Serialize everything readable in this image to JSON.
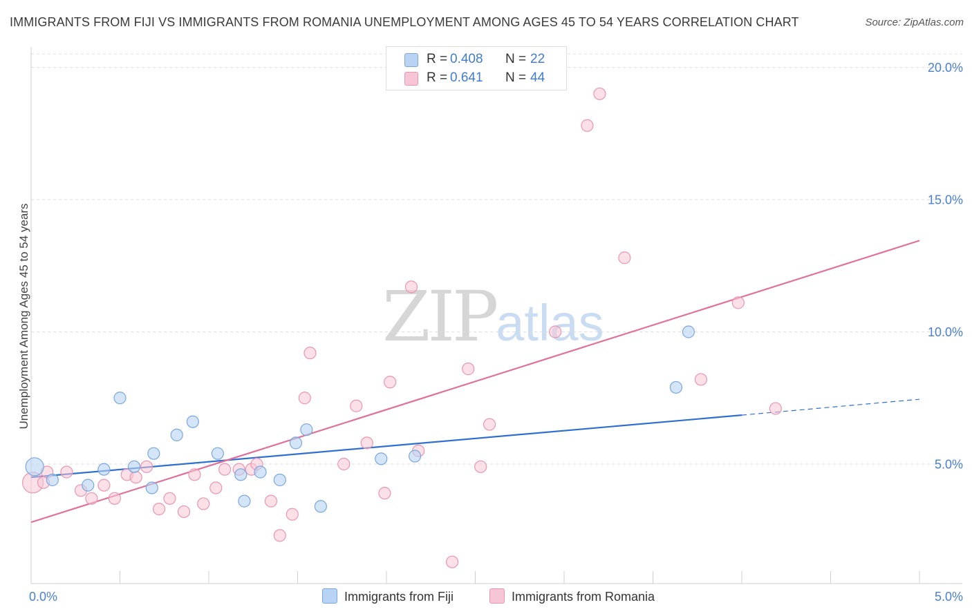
{
  "header": {
    "title": "IMMIGRANTS FROM FIJI VS IMMIGRANTS FROM ROMANIA UNEMPLOYMENT AMONG AGES 45 TO 54 YEARS CORRELATION CHART",
    "source": "Source: ZipAtlas.com"
  },
  "watermark": {
    "zip": "ZIP",
    "atlas": "atlas"
  },
  "legend": {
    "fiji": {
      "r_label": "R =",
      "r_value": "0.408",
      "n_label": "N =",
      "n_value": "22"
    },
    "romania": {
      "r_label": "R =",
      "r_value": "0.641",
      "n_label": "N =",
      "n_value": "44"
    }
  },
  "bottom_legend": {
    "fiji": "Immigrants from Fiji",
    "romania": "Immigrants from Romania"
  },
  "colors": {
    "fiji_fill": "#b8d3f3",
    "fiji_stroke": "#7aa6dc",
    "fiji_line": "#2f6fcf",
    "romania_fill": "#f7c6d6",
    "romania_stroke": "#e895b2",
    "romania_line": "#e0709a",
    "tick_label": "#4a7fd0",
    "grid": "#dedede"
  },
  "chart_data": {
    "type": "scatter",
    "title": "IMMIGRANTS FROM FIJI VS IMMIGRANTS FROM ROMANIA UNEMPLOYMENT AMONG AGES 45 TO 54 YEARS CORRELATION CHART",
    "xlabel": "",
    "ylabel": "Unemployment Among Ages 45 to 54 years",
    "xlim": [
      0,
      5
    ],
    "ylim": [
      0.5,
      20.5
    ],
    "x_ticks": [
      {
        "value": 0,
        "label": "0.0%"
      },
      {
        "value": 5,
        "label": "5.0%"
      }
    ],
    "y_ticks": [
      {
        "value": 5,
        "label": "5.0%"
      },
      {
        "value": 10,
        "label": "10.0%"
      },
      {
        "value": 15,
        "label": "15.0%"
      },
      {
        "value": 20,
        "label": "20.0%"
      }
    ],
    "grid": true,
    "legend_position": "top-center",
    "series": [
      {
        "name": "Immigrants from Fiji",
        "points": [
          [
            0.02,
            4.9
          ],
          [
            0.12,
            4.4
          ],
          [
            0.32,
            4.2
          ],
          [
            0.41,
            4.8
          ],
          [
            0.5,
            7.5
          ],
          [
            0.58,
            4.9
          ],
          [
            0.68,
            4.1
          ],
          [
            0.69,
            5.4
          ],
          [
            0.82,
            6.1
          ],
          [
            0.91,
            6.6
          ],
          [
            1.05,
            5.4
          ],
          [
            1.18,
            4.6
          ],
          [
            1.2,
            3.6
          ],
          [
            1.29,
            4.7
          ],
          [
            1.4,
            4.4
          ],
          [
            1.49,
            5.8
          ],
          [
            1.55,
            6.3
          ],
          [
            1.63,
            3.4
          ],
          [
            1.97,
            5.2
          ],
          [
            2.16,
            5.3
          ],
          [
            3.63,
            7.9
          ],
          [
            3.7,
            10.0
          ]
        ],
        "trend": {
          "x0": 0,
          "y0": 4.5,
          "x1": 4.0,
          "y1": 6.85,
          "dashed_to_x": 5.0,
          "dashed_to_y": 7.45
        }
      },
      {
        "name": "Immigrants from Romania",
        "points": [
          [
            0.01,
            4.3
          ],
          [
            0.07,
            4.3
          ],
          [
            0.09,
            4.7
          ],
          [
            0.2,
            4.7
          ],
          [
            0.28,
            4.0
          ],
          [
            0.34,
            3.7
          ],
          [
            0.41,
            4.2
          ],
          [
            0.47,
            3.7
          ],
          [
            0.54,
            4.6
          ],
          [
            0.59,
            4.5
          ],
          [
            0.65,
            4.9
          ],
          [
            0.72,
            3.3
          ],
          [
            0.78,
            3.7
          ],
          [
            0.86,
            3.2
          ],
          [
            0.92,
            4.6
          ],
          [
            0.97,
            3.5
          ],
          [
            1.04,
            4.1
          ],
          [
            1.09,
            4.8
          ],
          [
            1.17,
            4.8
          ],
          [
            1.24,
            4.8
          ],
          [
            1.27,
            5.0
          ],
          [
            1.35,
            3.6
          ],
          [
            1.4,
            2.3
          ],
          [
            1.47,
            3.1
          ],
          [
            1.54,
            7.5
          ],
          [
            1.57,
            9.2
          ],
          [
            1.76,
            5.0
          ],
          [
            1.83,
            7.2
          ],
          [
            1.89,
            5.8
          ],
          [
            1.99,
            3.9
          ],
          [
            2.02,
            8.1
          ],
          [
            2.14,
            11.7
          ],
          [
            2.18,
            5.5
          ],
          [
            2.37,
            1.3
          ],
          [
            2.46,
            8.6
          ],
          [
            2.53,
            4.9
          ],
          [
            2.58,
            6.5
          ],
          [
            2.95,
            10.0
          ],
          [
            3.13,
            17.8
          ],
          [
            3.2,
            19.0
          ],
          [
            3.34,
            12.8
          ],
          [
            3.77,
            8.2
          ],
          [
            3.98,
            11.1
          ],
          [
            4.19,
            7.1
          ]
        ],
        "trend": {
          "x0": 0,
          "y0": 2.8,
          "x1": 5.0,
          "y1": 13.45
        }
      }
    ]
  }
}
